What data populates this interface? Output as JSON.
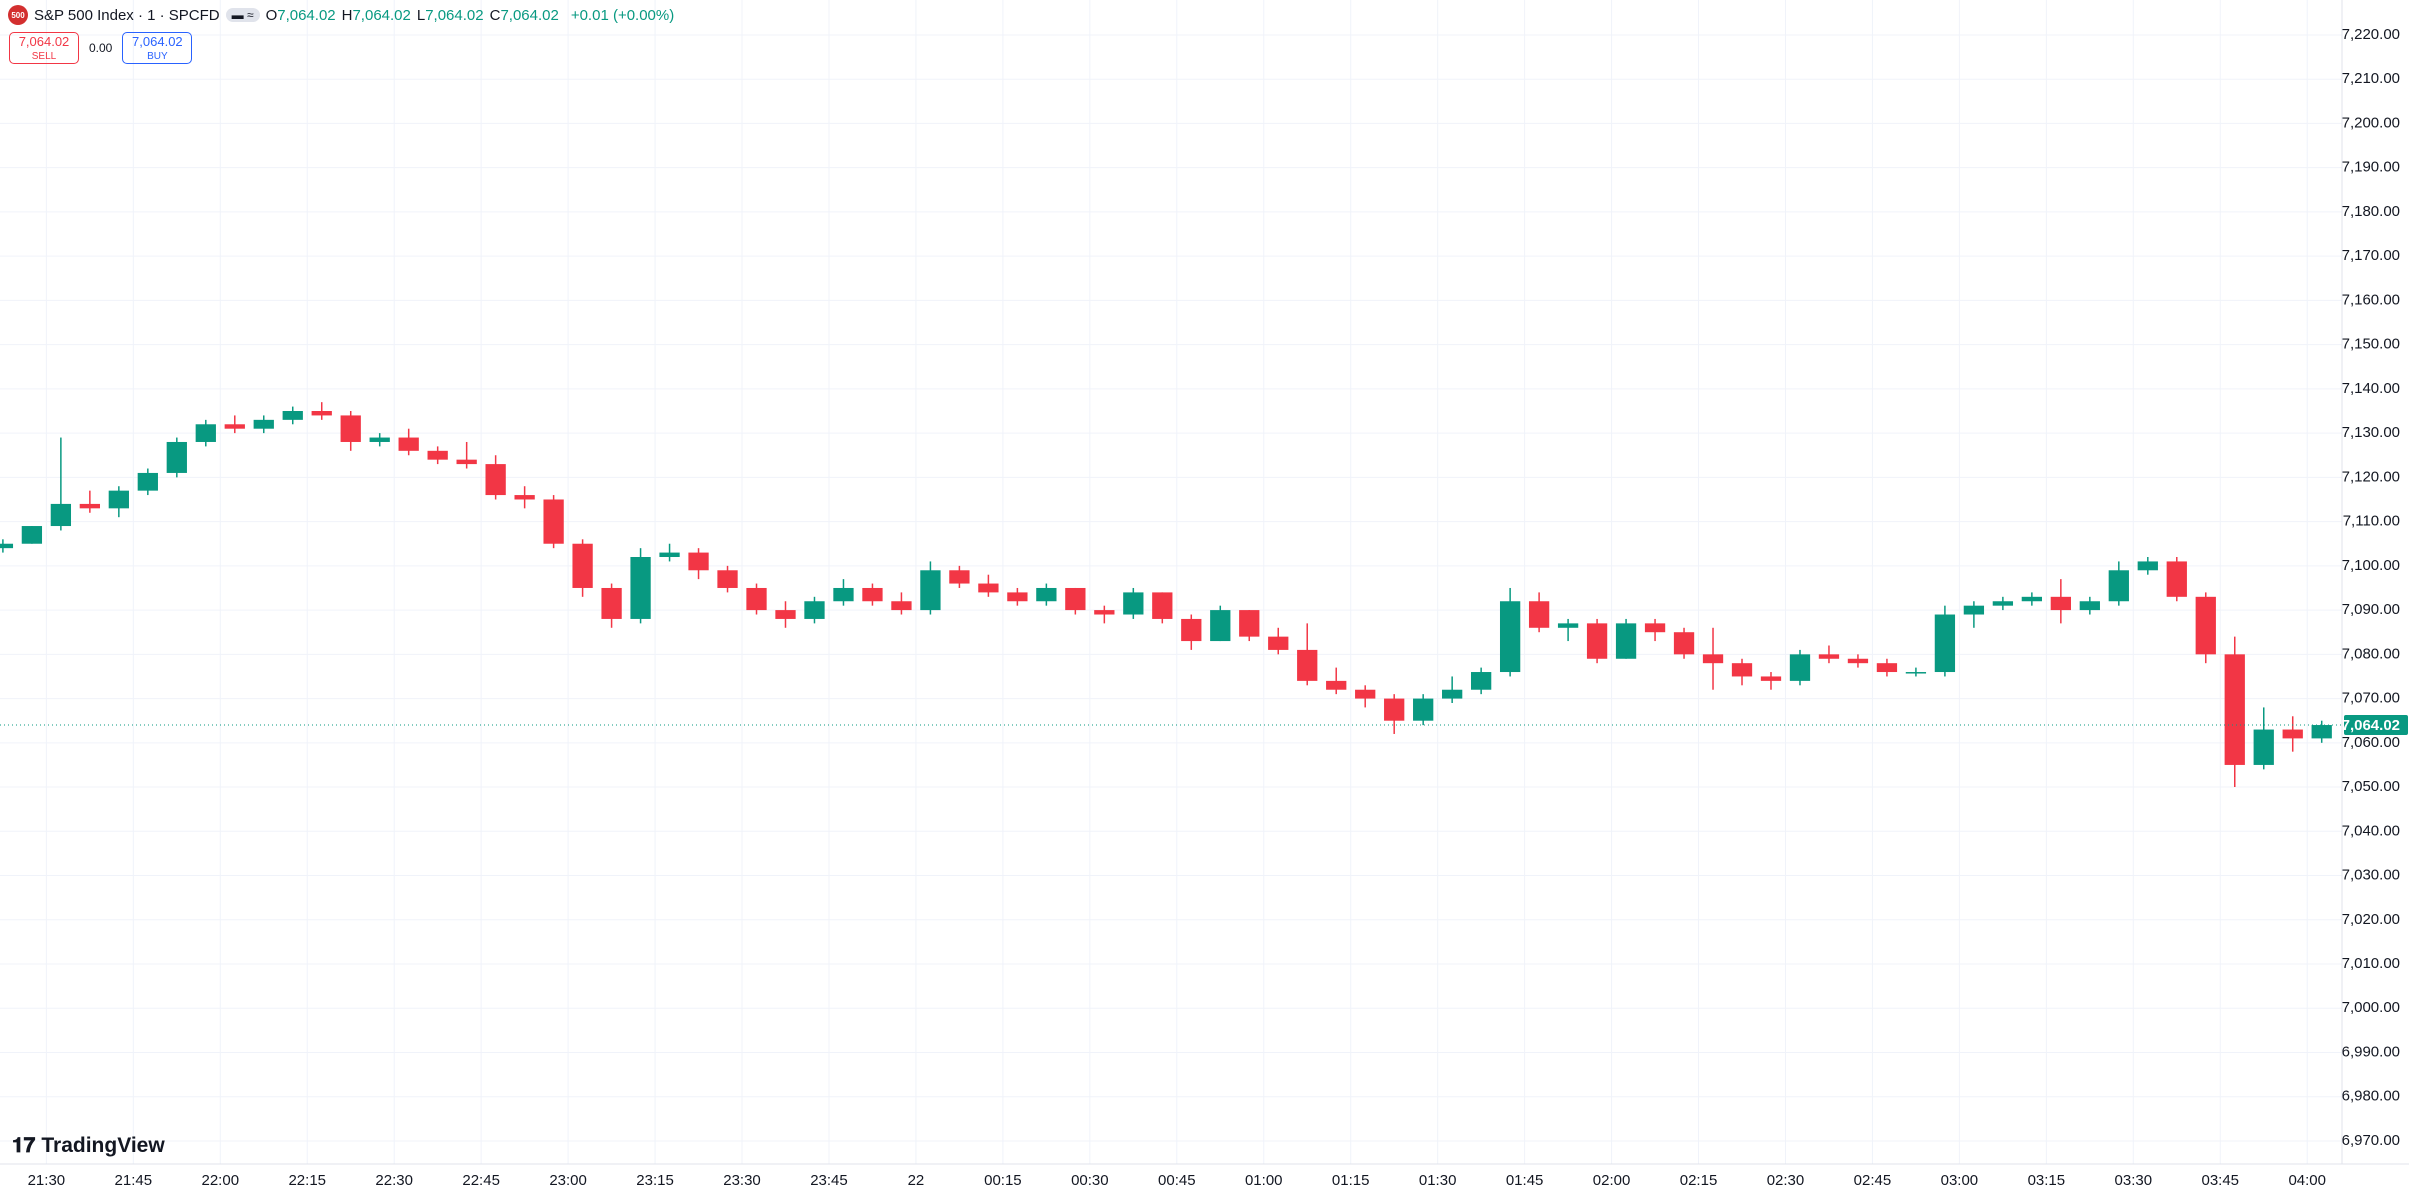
{
  "header": {
    "badge": "500",
    "symbol": "S&P 500 Index · 1 · SPCFD",
    "ohlc": [
      {
        "key": "O",
        "value": "7,064.02"
      },
      {
        "key": "H",
        "value": "7,064.02"
      },
      {
        "key": "L",
        "value": "7,064.02"
      },
      {
        "key": "C",
        "value": "7,064.02"
      }
    ],
    "change": "+0.01 (+0.00%)",
    "sell": {
      "price": "7,064.02",
      "label": "SELL"
    },
    "spread": "0.00",
    "buy": {
      "price": "7,064.02",
      "label": "BUY"
    }
  },
  "brand": "TradingView",
  "chart_data": {
    "type": "candlestick",
    "up_color": "#089981",
    "down_color": "#f23645",
    "grid": true,
    "x": [
      "21:20",
      "21:25",
      "21:30",
      "21:35",
      "21:40",
      "21:45",
      "21:50",
      "21:55",
      "22:00",
      "22:05",
      "22:10",
      "22:15",
      "22:20",
      "22:25",
      "22:30",
      "22:35",
      "22:40",
      "22:45",
      "22:50",
      "22:55",
      "23:00",
      "23:05",
      "23:10",
      "23:15",
      "23:20",
      "23:25",
      "23:30",
      "23:35",
      "23:40",
      "23:45",
      "23:50",
      "23:55",
      "00:00",
      "00:05",
      "00:10",
      "00:15",
      "00:20",
      "00:25",
      "00:30",
      "00:35",
      "00:40",
      "00:45",
      "00:50",
      "00:55",
      "01:00",
      "01:05",
      "01:10",
      "01:15",
      "01:20",
      "01:25",
      "01:30",
      "01:35",
      "01:40",
      "01:45",
      "01:50",
      "01:55",
      "02:00",
      "02:05",
      "02:10",
      "02:15",
      "02:20",
      "02:25",
      "02:30",
      "02:35",
      "02:40",
      "02:45",
      "02:50",
      "02:55",
      "03:00",
      "03:05",
      "03:10",
      "03:15",
      "03:20",
      "03:25",
      "03:30",
      "03:35",
      "03:40",
      "03:45",
      "03:50",
      "03:55",
      "04:00"
    ],
    "open": [
      7104,
      7105,
      7109,
      7114,
      7113,
      7117,
      7121,
      7128,
      7132,
      7131,
      7133,
      7135,
      7134,
      7128,
      7129,
      7126,
      7124,
      7123,
      7116,
      7115,
      7105,
      7095,
      7088,
      7102,
      7103,
      7099,
      7095,
      7090,
      7088,
      7092,
      7095,
      7092,
      7090,
      7099,
      7096,
      7094,
      7092,
      7095,
      7090,
      7089,
      7094,
      7088,
      7083,
      7090,
      7084,
      7081,
      7074,
      7072,
      7070,
      7065,
      7070,
      7072,
      7076,
      7092,
      7086,
      7087,
      7079,
      7087,
      7085,
      7080,
      7078,
      7075,
      7074,
      7080,
      7079,
      7078,
      7076,
      7076,
      7089,
      7091,
      7092,
      7093,
      7090,
      7092,
      7099,
      7101,
      7093,
      7080,
      7055,
      7063,
      7061
    ],
    "high": [
      7106,
      7109,
      7129,
      7117,
      7118,
      7122,
      7129,
      7133,
      7134,
      7134,
      7136,
      7137,
      7135,
      7130,
      7131,
      7127,
      7128,
      7125,
      7118,
      7116,
      7106,
      7096,
      7104,
      7105,
      7104,
      7100,
      7096,
      7092,
      7093,
      7097,
      7096,
      7094,
      7101,
      7100,
      7098,
      7095,
      7096,
      7095,
      7091,
      7095,
      7094,
      7089,
      7091,
      7090,
      7086,
      7087,
      7077,
      7073,
      7071,
      7071,
      7075,
      7077,
      7095,
      7094,
      7088,
      7088,
      7088,
      7088,
      7086,
      7086,
      7079,
      7076,
      7081,
      7082,
      7080,
      7079,
      7077,
      7091,
      7092,
      7093,
      7094,
      7097,
      7093,
      7101,
      7102,
      7102,
      7094,
      7084,
      7068,
      7066,
      7065
    ],
    "low": [
      7103,
      7105,
      7108,
      7112,
      7111,
      7116,
      7120,
      7127,
      7130,
      7130,
      7132,
      7133,
      7126,
      7127,
      7125,
      7123,
      7122,
      7115,
      7113,
      7104,
      7093,
      7086,
      7087,
      7101,
      7097,
      7094,
      7089,
      7086,
      7087,
      7091,
      7091,
      7089,
      7089,
      7095,
      7093,
      7091,
      7091,
      7089,
      7087,
      7088,
      7087,
      7081,
      7083,
      7083,
      7080,
      7073,
      7071,
      7068,
      7062,
      7064,
      7069,
      7071,
      7075,
      7085,
      7083,
      7078,
      7079,
      7083,
      7079,
      7072,
      7073,
      7072,
      7073,
      7078,
      7077,
      7075,
      7075,
      7075,
      7086,
      7090,
      7091,
      7087,
      7089,
      7091,
      7098,
      7092,
      7078,
      7050,
      7054,
      7058,
      7060
    ],
    "close": [
      7105,
      7109,
      7114,
      7113,
      7117,
      7121,
      7128,
      7132,
      7131,
      7133,
      7135,
      7134,
      7128,
      7129,
      7126,
      7124,
      7123,
      7116,
      7115,
      7105,
      7095,
      7088,
      7102,
      7103,
      7099,
      7095,
      7090,
      7088,
      7092,
      7095,
      7092,
      7090,
      7099,
      7096,
      7094,
      7092,
      7095,
      7090,
      7089,
      7094,
      7088,
      7083,
      7090,
      7084,
      7081,
      7074,
      7072,
      7070,
      7065,
      7070,
      7072,
      7076,
      7092,
      7086,
      7087,
      7079,
      7087,
      7085,
      7080,
      7078,
      7075,
      7074,
      7080,
      7079,
      7078,
      7076,
      7076,
      7089,
      7091,
      7092,
      7093,
      7090,
      7092,
      7099,
      7101,
      7093,
      7080,
      7055,
      7063,
      7061,
      7064.02
    ],
    "xlim": [
      "21:22",
      "04:06"
    ],
    "xticks": [
      {
        "value": "21:30",
        "label": "21:30"
      },
      {
        "value": "21:45",
        "label": "21:45"
      },
      {
        "value": "22:00",
        "label": "22:00"
      },
      {
        "value": "22:15",
        "label": "22:15"
      },
      {
        "value": "22:30",
        "label": "22:30"
      },
      {
        "value": "22:45",
        "label": "22:45"
      },
      {
        "value": "23:00",
        "label": "23:00"
      },
      {
        "value": "23:15",
        "label": "23:15"
      },
      {
        "value": "23:30",
        "label": "23:30"
      },
      {
        "value": "23:45",
        "label": "23:45"
      },
      {
        "value": "00:00",
        "label": "22"
      },
      {
        "value": "00:15",
        "label": "00:15"
      },
      {
        "value": "00:30",
        "label": "00:30"
      },
      {
        "value": "00:45",
        "label": "00:45"
      },
      {
        "value": "01:00",
        "label": "01:00"
      },
      {
        "value": "01:15",
        "label": "01:15"
      },
      {
        "value": "01:30",
        "label": "01:30"
      },
      {
        "value": "01:45",
        "label": "01:45"
      },
      {
        "value": "02:00",
        "label": "02:00"
      },
      {
        "value": "02:15",
        "label": "02:15"
      },
      {
        "value": "02:30",
        "label": "02:30"
      },
      {
        "value": "02:45",
        "label": "02:45"
      },
      {
        "value": "03:00",
        "label": "03:00"
      },
      {
        "value": "03:15",
        "label": "03:15"
      },
      {
        "value": "03:30",
        "label": "03:30"
      },
      {
        "value": "03:45",
        "label": "03:45"
      },
      {
        "value": "04:00",
        "label": "04:00"
      }
    ],
    "ylim": [
      6964.8,
      7227.9
    ],
    "yticks": [
      {
        "value": 6970,
        "label": "6,970.00"
      },
      {
        "value": 6980,
        "label": "6,980.00"
      },
      {
        "value": 6990,
        "label": "6,990.00"
      },
      {
        "value": 7000,
        "label": "7,000.00"
      },
      {
        "value": 7010,
        "label": "7,010.00"
      },
      {
        "value": 7020,
        "label": "7,020.00"
      },
      {
        "value": 7030,
        "label": "7,030.00"
      },
      {
        "value": 7040,
        "label": "7,040.00"
      },
      {
        "value": 7050,
        "label": "7,050.00"
      },
      {
        "value": 7060,
        "label": "7,060.00"
      },
      {
        "value": 7070,
        "label": "7,070.00"
      },
      {
        "value": 7080,
        "label": "7,080.00"
      },
      {
        "value": 7090,
        "label": "7,090.00"
      },
      {
        "value": 7100,
        "label": "7,100.00"
      },
      {
        "value": 7110,
        "label": "7,110.00"
      },
      {
        "value": 7120,
        "label": "7,120.00"
      },
      {
        "value": 7130,
        "label": "7,130.00"
      },
      {
        "value": 7140,
        "label": "7,140.00"
      },
      {
        "value": 7150,
        "label": "7,150.00"
      },
      {
        "value": 7160,
        "label": "7,160.00"
      },
      {
        "value": 7170,
        "label": "7,170.00"
      },
      {
        "value": 7180,
        "label": "7,180.00"
      },
      {
        "value": 7190,
        "label": "7,190.00"
      },
      {
        "value": 7200,
        "label": "7,200.00"
      },
      {
        "value": 7210,
        "label": "7,210.00"
      },
      {
        "value": 7220,
        "label": "7,220.00"
      }
    ],
    "last_price": {
      "value": 7064.02,
      "label": "7,064.02",
      "color": "#089981"
    }
  }
}
